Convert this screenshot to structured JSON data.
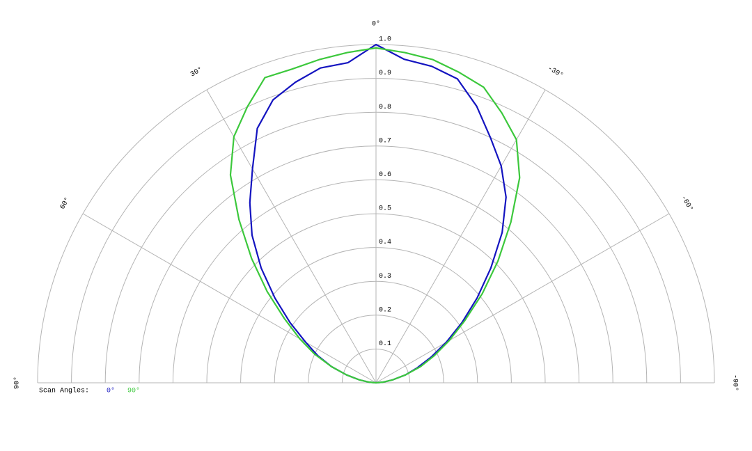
{
  "chart_data": {
    "type": "polar",
    "theta": [
      90,
      85,
      80,
      75,
      70,
      65,
      60,
      55,
      50,
      45,
      40,
      35,
      30,
      25,
      20,
      15,
      10,
      5,
      0,
      -5,
      -10,
      -15,
      -20,
      -25,
      -30,
      -35,
      -40,
      -45,
      -50,
      -55,
      -60,
      -65,
      -70,
      -75,
      -80,
      -85,
      -90
    ],
    "series": [
      {
        "name": "0°",
        "color": "#1414c0",
        "values": [
          0,
          0.02,
          0.05,
          0.09,
          0.14,
          0.19,
          0.24,
          0.31,
          0.39,
          0.48,
          0.57,
          0.65,
          0.73,
          0.83,
          0.89,
          0.92,
          0.945,
          0.95,
          1.0,
          0.96,
          0.95,
          0.93,
          0.87,
          0.8,
          0.74,
          0.67,
          0.58,
          0.48,
          0.39,
          0.31,
          0.24,
          0.18,
          0.13,
          0.09,
          0.05,
          0.02,
          0
        ]
      },
      {
        "name": "90°",
        "color": "#3cc83c",
        "values": [
          0,
          0.02,
          0.05,
          0.09,
          0.14,
          0.2,
          0.26,
          0.33,
          0.42,
          0.52,
          0.63,
          0.75,
          0.84,
          0.9,
          0.96,
          0.96,
          0.97,
          0.98,
          0.99,
          0.98,
          0.97,
          0.95,
          0.93,
          0.88,
          0.83,
          0.74,
          0.62,
          0.51,
          0.41,
          0.32,
          0.25,
          0.19,
          0.14,
          0.09,
          0.05,
          0.02,
          0
        ]
      }
    ],
    "rlim": [
      0,
      1
    ],
    "rticks": [
      0.1,
      0.2,
      0.3,
      0.4,
      0.5,
      0.6,
      0.7,
      0.8,
      0.9,
      {
        "value": 1,
        "label": "1.0"
      }
    ],
    "thetaticks": [
      {
        "value": 0,
        "label": "0°"
      },
      {
        "value": 30,
        "label": "30°"
      },
      {
        "value": -30,
        "label": "-30°"
      },
      {
        "value": 60,
        "label": "60°"
      },
      {
        "value": -60,
        "label": "-60°"
      },
      {
        "value": 90,
        "label": "90°"
      },
      {
        "value": -90,
        "label": "-90°"
      }
    ],
    "legend_title": "Scan Angles:"
  }
}
